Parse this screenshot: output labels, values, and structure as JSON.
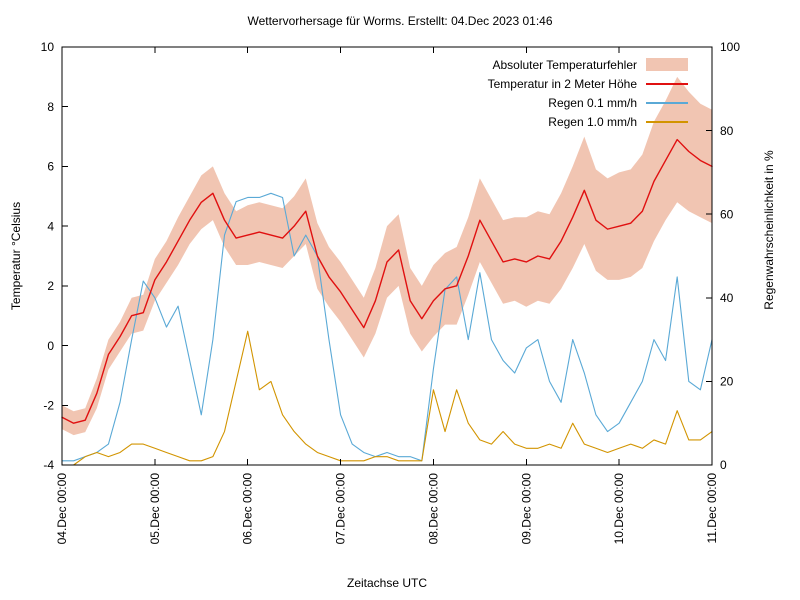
{
  "title": "Wettervorhersage für Worms. Erstellt: 04.Dec 2023 01:46",
  "legend": [
    {
      "label": "Absoluter Temperaturfehler",
      "type": "band",
      "color": "#f1c5b2"
    },
    {
      "label": "Temperatur in 2 Meter Höhe",
      "type": "line",
      "color": "#e01010"
    },
    {
      "label": "Regen 0.1 mm/h",
      "type": "line",
      "color": "#5aa9d6"
    },
    {
      "label": "Regen 1.0 mm/h",
      "type": "line",
      "color": "#d29400"
    }
  ],
  "chart_data": {
    "type": "line",
    "title": "Wettervorhersage für Worms. Erstellt: 04.Dec 2023 01:46",
    "xlabel": "Zeitachse UTC",
    "ylabel_left": "Temperatur °Celsius",
    "ylabel_right": "Regenwahrscheinlichkeit in %",
    "ylim_left": [
      -4,
      10
    ],
    "ylim_right": [
      0,
      100
    ],
    "y_left_ticks": [
      -4,
      -2,
      0,
      2,
      4,
      6,
      8,
      10
    ],
    "y_right_ticks": [
      0,
      20,
      40,
      60,
      80,
      100
    ],
    "x_range_hours": [
      0,
      168
    ],
    "x_step_hours": 3,
    "x_tick_labels": [
      "04.Dec 00:00",
      "05.Dec 00:00",
      "06.Dec 00:00",
      "07.Dec 00:00",
      "08.Dec 00:00",
      "09.Dec 00:00",
      "10.Dec 00:00",
      "11.Dec 00:00"
    ],
    "grid": false,
    "legend_position": "top-right",
    "series": [
      {
        "name": "Absoluter Temperaturfehler",
        "axis": "left",
        "style": "band",
        "color": "#f1c5b2",
        "half_width": [
          0.4,
          0.4,
          0.4,
          0.5,
          0.5,
          0.5,
          0.6,
          0.6,
          0.7,
          0.7,
          0.8,
          0.8,
          0.9,
          0.9,
          0.9,
          0.9,
          1.0,
          1.0,
          1.0,
          1.0,
          1.0,
          1.1,
          1.1,
          1.0,
          1.0,
          1.0,
          1.0,
          1.1,
          1.2,
          1.2,
          1.1,
          1.1,
          1.2,
          1.2,
          1.3,
          1.3,
          1.4,
          1.4,
          1.4,
          1.4,
          1.5,
          1.5,
          1.5,
          1.6,
          1.7,
          1.8,
          1.7,
          1.7,
          1.8,
          1.8,
          1.9,
          2.0,
          2.0,
          2.1,
          2.0,
          1.9,
          1.9
        ]
      },
      {
        "name": "Temperatur in 2 Meter Höhe",
        "axis": "left",
        "style": "line",
        "color": "#e01010",
        "values": [
          -2.4,
          -2.6,
          -2.5,
          -1.6,
          -0.3,
          0.3,
          1.0,
          1.1,
          2.2,
          2.8,
          3.5,
          4.2,
          4.8,
          5.1,
          4.2,
          3.6,
          3.7,
          3.8,
          3.7,
          3.6,
          4.0,
          4.5,
          3.0,
          2.3,
          1.8,
          1.2,
          0.6,
          1.5,
          2.8,
          3.2,
          1.5,
          0.9,
          1.5,
          1.9,
          2.0,
          3.0,
          4.2,
          3.5,
          2.8,
          2.9,
          2.8,
          3.0,
          2.9,
          3.5,
          4.3,
          5.2,
          4.2,
          3.9,
          4.0,
          4.1,
          4.5,
          5.5,
          6.2,
          6.9,
          6.5,
          6.2,
          6.0
        ]
      },
      {
        "name": "Regen 0.1 mm/h",
        "axis": "right",
        "style": "line",
        "color": "#5aa9d6",
        "values": [
          1,
          1,
          2,
          3,
          5,
          15,
          30,
          44,
          40,
          33,
          38,
          25,
          12,
          30,
          55,
          63,
          64,
          64,
          65,
          64,
          50,
          55,
          50,
          30,
          12,
          5,
          3,
          2,
          3,
          2,
          2,
          1,
          23,
          42,
          45,
          30,
          46,
          30,
          25,
          22,
          28,
          30,
          20,
          15,
          30,
          22,
          12,
          8,
          10,
          15,
          20,
          30,
          25,
          45,
          20,
          18,
          30
        ]
      },
      {
        "name": "Regen 1.0 mm/h",
        "axis": "right",
        "style": "line",
        "color": "#d29400",
        "values": [
          0,
          0,
          2,
          3,
          2,
          3,
          5,
          5,
          4,
          3,
          2,
          1,
          1,
          2,
          8,
          20,
          32,
          18,
          20,
          12,
          8,
          5,
          3,
          2,
          1,
          1,
          1,
          2,
          2,
          1,
          1,
          1,
          18,
          8,
          18,
          10,
          6,
          5,
          8,
          5,
          4,
          4,
          5,
          4,
          10,
          5,
          4,
          3,
          4,
          5,
          4,
          6,
          5,
          13,
          6,
          6,
          8
        ]
      }
    ]
  }
}
